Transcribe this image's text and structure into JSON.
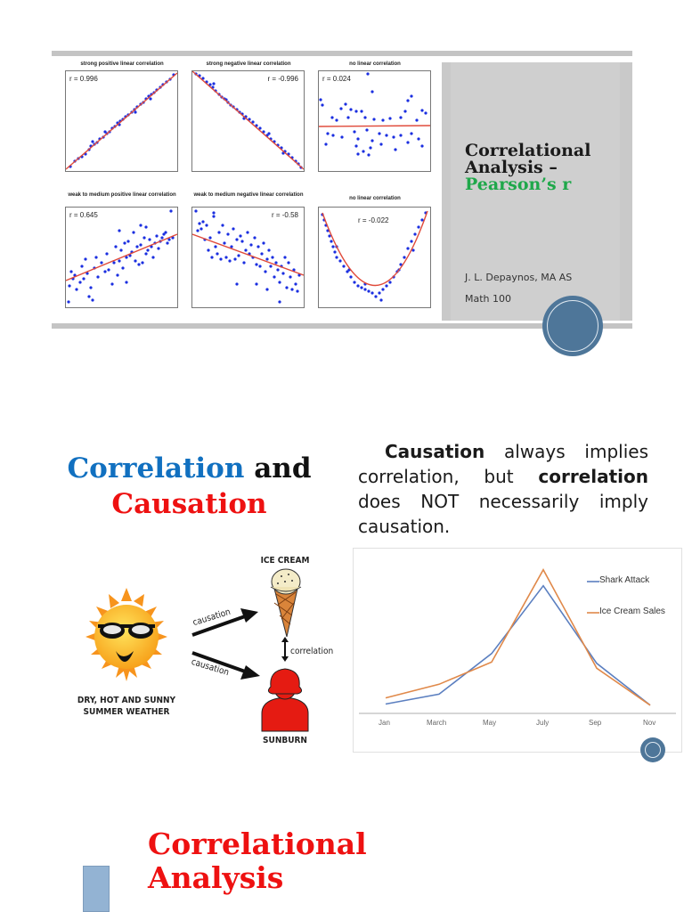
{
  "slide1": {
    "scatter_plots": [
      {
        "title": "strong positive linear correlation",
        "r_label": "r = 0.996"
      },
      {
        "title": "strong negative linear correlation",
        "r_label": "r = -0.996"
      },
      {
        "title": "no linear correlation",
        "r_label": "r = 0.024"
      },
      {
        "title": "weak to medium positive linear correlation",
        "r_label": "r = 0.645"
      },
      {
        "title": "weak to medium negative linear correlation",
        "r_label": "r = -0.58"
      },
      {
        "title": "no linear correlation",
        "r_label": "r = -0.022"
      }
    ],
    "title_line1": "Correlational",
    "title_line2": "Analysis –",
    "title_line3": "Pearson’s r",
    "author": "J. L. Depaynos, MA AS",
    "course": "Math 100",
    "colors": {
      "accent_green": "#1fa84a",
      "badge_blue": "#4e7699",
      "dot_blue": "#1a2ee0",
      "fit_red": "#e04a3a"
    }
  },
  "slide2": {
    "heading_part1": "Correlation",
    "heading_part2": "and",
    "heading_part3": "Causation",
    "body_bold1": "Causation",
    "body_text1": " always implies correlation, but ",
    "body_bold2": "correlation",
    "body_text2": " does NOT necessarily imply causation.",
    "diagram": {
      "ice_cream_label": "ICE CREAM",
      "causation_label_top": "causation",
      "causation_label_bottom": "causation",
      "correlation_label": "correlation",
      "weather_label_line1": "DRY, HOT AND SUNNY",
      "weather_label_line2": "SUMMER WEATHER",
      "sunburn_label": "SUNBURN"
    },
    "colors": {
      "blue_heading": "#1170c0",
      "red_heading": "#ee1111"
    }
  },
  "chart_data": {
    "type": "line",
    "categories": [
      "Jan",
      "March",
      "May",
      "July",
      "Sep",
      "Nov"
    ],
    "series": [
      {
        "name": "Shark Attack",
        "color": "#5b7fc0",
        "values": [
          4,
          12,
          45,
          100,
          37,
          3
        ]
      },
      {
        "name": "Ice Cream Sales",
        "color": "#e0894a",
        "values": [
          9,
          20,
          38,
          113,
          33,
          3
        ]
      }
    ],
    "title": "",
    "xlabel": "",
    "ylabel": "",
    "ylim": [
      0,
      120
    ],
    "grid": false,
    "legend_position": "top-right"
  },
  "slide3": {
    "title_line1": "Correlational",
    "title_line2": "Analysis"
  }
}
